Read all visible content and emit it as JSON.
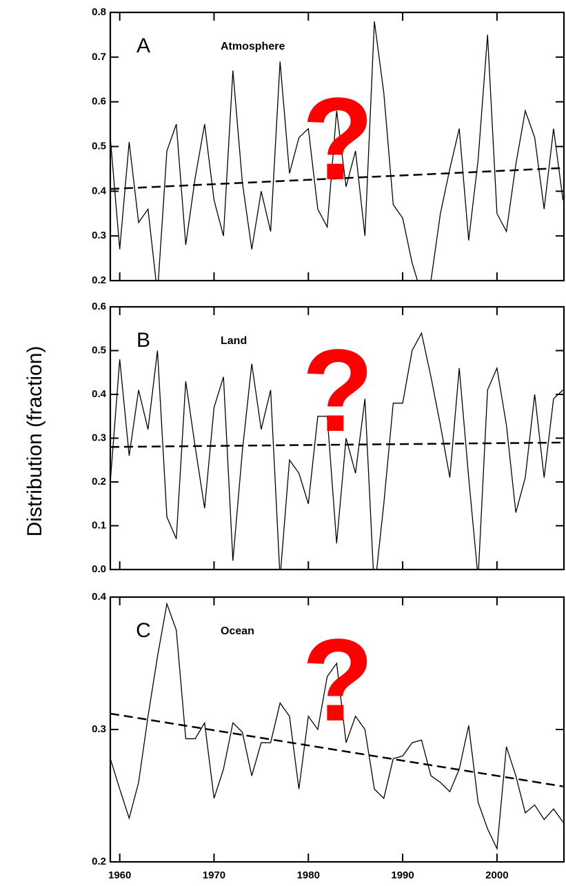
{
  "ylabel": "Distribution (fraction)",
  "chart_data": [
    {
      "type": "line",
      "panel": "A",
      "title": "Atmosphere",
      "annotation": "?",
      "x": [
        1959,
        1960,
        1961,
        1962,
        1963,
        1964,
        1965,
        1966,
        1967,
        1968,
        1969,
        1970,
        1971,
        1972,
        1973,
        1974,
        1975,
        1976,
        1977,
        1978,
        1979,
        1980,
        1981,
        1982,
        1983,
        1984,
        1985,
        1986,
        1987,
        1988,
        1989,
        1990,
        1991,
        1992,
        1993,
        1994,
        1995,
        1996,
        1997,
        1998,
        1999,
        2000,
        2001,
        2002,
        2003,
        2004,
        2005,
        2006,
        2007
      ],
      "series": [
        {
          "color": "#000000",
          "values": [
            0.52,
            0.27,
            0.51,
            0.33,
            0.36,
            0.17,
            0.49,
            0.55,
            0.28,
            0.43,
            0.55,
            0.38,
            0.3,
            0.67,
            0.42,
            0.27,
            0.4,
            0.31,
            0.69,
            0.44,
            0.52,
            0.54,
            0.36,
            0.32,
            0.58,
            0.41,
            0.49,
            0.3,
            0.78,
            0.62,
            0.37,
            0.34,
            0.24,
            0.17,
            0.2,
            0.35,
            0.45,
            0.54,
            0.29,
            0.47,
            0.75,
            0.35,
            0.31,
            0.46,
            0.58,
            0.52,
            0.36,
            0.54,
            0.38
          ]
        }
      ],
      "trend": {
        "color": "#000000",
        "x": [
          1959,
          2007
        ],
        "values": [
          0.405,
          0.452
        ]
      },
      "xlim": [
        1959,
        2007.1
      ],
      "xticks": [
        1960,
        1970,
        1980,
        1990,
        2000
      ],
      "xtick_labels": false,
      "ylim": [
        0.2,
        0.8
      ],
      "yticks": [
        0.2,
        0.3,
        0.4,
        0.5,
        0.6,
        0.7,
        0.8
      ]
    },
    {
      "type": "line",
      "panel": "B",
      "title": "Land",
      "annotation": "?",
      "x": [
        1959,
        1960,
        1961,
        1962,
        1963,
        1964,
        1965,
        1966,
        1967,
        1968,
        1969,
        1970,
        1971,
        1972,
        1973,
        1974,
        1975,
        1976,
        1977,
        1978,
        1979,
        1980,
        1981,
        1982,
        1983,
        1984,
        1985,
        1986,
        1987,
        1988,
        1989,
        1990,
        1991,
        1992,
        1993,
        1994,
        1995,
        1996,
        1997,
        1998,
        1999,
        2000,
        2001,
        2002,
        2003,
        2004,
        2005,
        2006,
        2007
      ],
      "series": [
        {
          "color": "#000000",
          "values": [
            0.2,
            0.48,
            0.26,
            0.41,
            0.32,
            0.5,
            0.12,
            0.07,
            0.43,
            0.28,
            0.14,
            0.37,
            0.44,
            0.02,
            0.27,
            0.47,
            0.32,
            0.41,
            -0.02,
            0.25,
            0.22,
            0.15,
            0.35,
            0.35,
            0.06,
            0.3,
            0.22,
            0.39,
            -0.05,
            0.15,
            0.38,
            0.38,
            0.5,
            0.54,
            0.44,
            0.33,
            0.21,
            0.46,
            0.21,
            -0.02,
            0.41,
            0.46,
            0.33,
            0.13,
            0.21,
            0.4,
            0.21,
            0.39,
            0.41
          ]
        }
      ],
      "trend": {
        "color": "#000000",
        "x": [
          1959,
          2007
        ],
        "values": [
          0.28,
          0.29
        ]
      },
      "xlim": [
        1959,
        2007.1
      ],
      "xticks": [
        1960,
        1970,
        1980,
        1990,
        2000
      ],
      "xtick_labels": false,
      "ylim": [
        0,
        0.6
      ],
      "yticks": [
        {
          "value": 0,
          "label": "0.0"
        },
        0.1,
        0.2,
        0.3,
        0.4,
        0.5,
        0.6
      ]
    },
    {
      "type": "line",
      "panel": "C",
      "title": "Ocean",
      "annotation": "?",
      "x": [
        1959,
        1960,
        1961,
        1962,
        1963,
        1964,
        1965,
        1966,
        1967,
        1968,
        1969,
        1970,
        1971,
        1972,
        1973,
        1974,
        1975,
        1976,
        1977,
        1978,
        1979,
        1980,
        1981,
        1982,
        1983,
        1984,
        1985,
        1986,
        1987,
        1988,
        1989,
        1990,
        1991,
        1992,
        1993,
        1994,
        1995,
        1996,
        1997,
        1998,
        1999,
        2000,
        2001,
        2002,
        2003,
        2004,
        2005,
        2006,
        2007
      ],
      "series": [
        {
          "color": "#000000",
          "values": [
            0.278,
            0.255,
            0.233,
            0.26,
            0.31,
            0.355,
            0.395,
            0.375,
            0.293,
            0.293,
            0.305,
            0.248,
            0.27,
            0.305,
            0.298,
            0.265,
            0.29,
            0.29,
            0.32,
            0.31,
            0.255,
            0.31,
            0.3,
            0.34,
            0.35,
            0.29,
            0.31,
            0.3,
            0.255,
            0.248,
            0.278,
            0.28,
            0.29,
            0.292,
            0.265,
            0.26,
            0.253,
            0.27,
            0.303,
            0.245,
            0.225,
            0.21,
            0.287,
            0.265,
            0.237,
            0.243,
            0.232,
            0.24,
            0.23
          ]
        }
      ],
      "trend": {
        "color": "#000000",
        "x": [
          1959,
          2007
        ],
        "values": [
          0.312,
          0.257
        ]
      },
      "xlim": [
        1959,
        2007.1
      ],
      "xticks": [
        1960,
        1970,
        1980,
        1990,
        2000
      ],
      "xtick_labels": true,
      "ylim": [
        0.2,
        0.4
      ],
      "yticks": [
        0.2,
        0.3,
        0.4
      ]
    }
  ]
}
